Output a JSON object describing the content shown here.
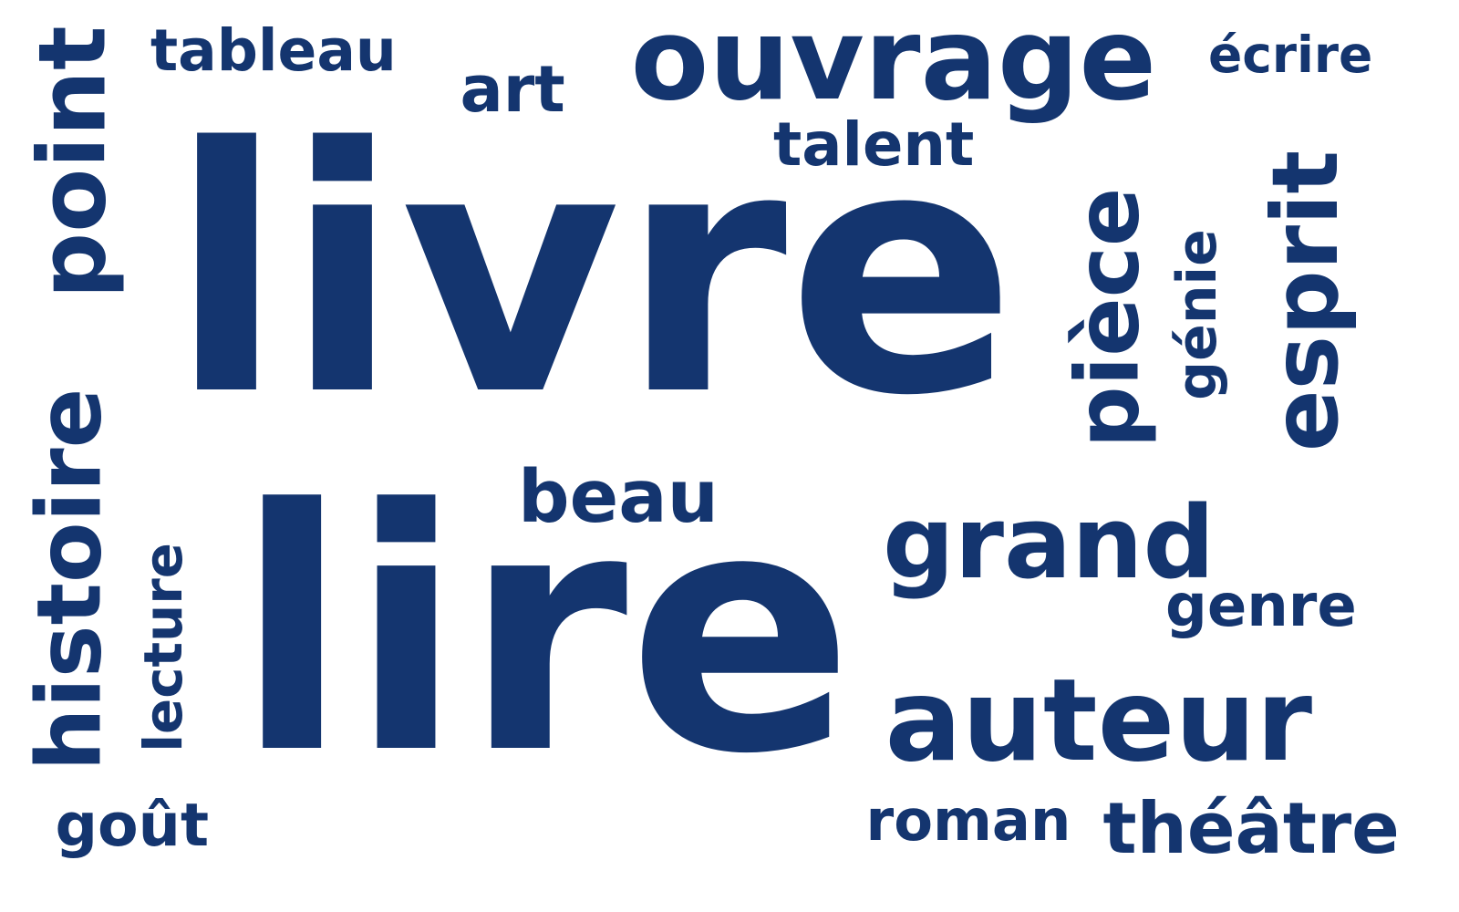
{
  "text_color": "#14356f",
  "background": "#ffffff",
  "words": [
    {
      "text": "livre",
      "orientation": "horizontal"
    },
    {
      "text": "lire",
      "orientation": "horizontal"
    },
    {
      "text": "ouvrage",
      "orientation": "horizontal"
    },
    {
      "text": "auteur",
      "orientation": "horizontal"
    },
    {
      "text": "histoire",
      "orientation": "vertical"
    },
    {
      "text": "point",
      "orientation": "vertical"
    },
    {
      "text": "esprit",
      "orientation": "vertical"
    },
    {
      "text": "grand",
      "orientation": "horizontal"
    },
    {
      "text": "pièce",
      "orientation": "vertical"
    },
    {
      "text": "art",
      "orientation": "horizontal"
    },
    {
      "text": "théâtre",
      "orientation": "horizontal"
    },
    {
      "text": "beau",
      "orientation": "horizontal"
    },
    {
      "text": "tableau",
      "orientation": "horizontal"
    },
    {
      "text": "écrire",
      "orientation": "horizontal"
    },
    {
      "text": "talent",
      "orientation": "horizontal"
    },
    {
      "text": "lecture",
      "orientation": "vertical"
    },
    {
      "text": "roman",
      "orientation": "horizontal"
    },
    {
      "text": "génie",
      "orientation": "vertical"
    },
    {
      "text": "genre",
      "orientation": "horizontal"
    },
    {
      "text": "goût",
      "orientation": "horizontal"
    }
  ]
}
